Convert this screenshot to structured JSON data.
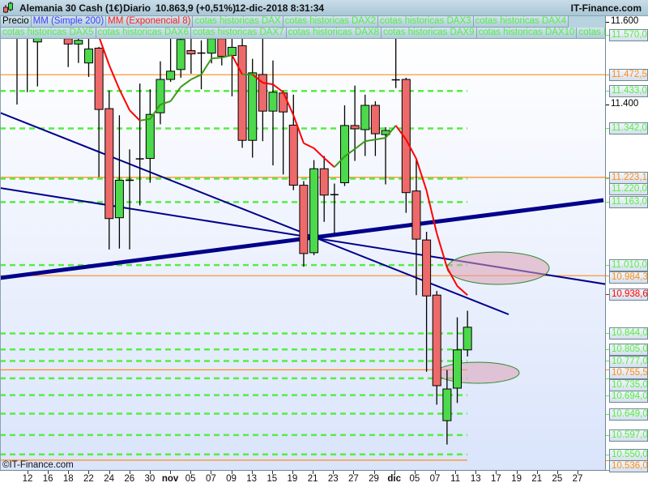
{
  "header": {
    "title": "Alemania 30 Cash (1€)",
    "period": "Diario",
    "price": "10.863,9 (+0,51%)",
    "datetime": "12-dic-2018 8:31:34",
    "brand": "IT-Finance.com",
    "icon": "candlestick-icon"
  },
  "legend": {
    "row1": [
      {
        "label": "Precio",
        "color": "#000000"
      },
      {
        "label": "MM (Simple 200)",
        "color": "#4040ff"
      },
      {
        "label": "MM (Exponencial 8)",
        "color": "#ff2020"
      },
      {
        "label": "cotas historicas DAX",
        "color": "#55ee44"
      },
      {
        "label": "cotas historicas DAX2",
        "color": "#55ee44"
      },
      {
        "label": "cotas historicas DAX3",
        "color": "#55ee44"
      },
      {
        "label": "cotas historicas DAX4",
        "color": "#55ee44"
      }
    ],
    "row2": [
      {
        "label": "cotas historicas DAX5",
        "color": "#55ee44"
      },
      {
        "label": "cotas historicas DAX6",
        "color": "#55ee44"
      },
      {
        "label": "cotas historicas DAX7",
        "color": "#55ee44"
      },
      {
        "label": "cotas historicas DAX8",
        "color": "#55ee44"
      },
      {
        "label": "cotas historicas DAX9",
        "color": "#55ee44"
      },
      {
        "label": "cotas historicas DAX10",
        "color": "#55ee44"
      },
      {
        "label": "cotas histori",
        "color": "#55ee44"
      }
    ]
  },
  "watermark": "©IT-Finance.com",
  "chart_data": {
    "type": "candlestick",
    "title": "Alemania 30 Cash (1€)",
    "ylim": [
      10520,
      11640
    ],
    "y_ticks": [
      {
        "value": 11600,
        "label": "11.600"
      },
      {
        "value": 11400,
        "label": "11.400"
      }
    ],
    "x_tick_labels": [
      "12",
      "16",
      "18",
      "22",
      "24",
      "26",
      "30",
      "nov",
      "05",
      "07",
      "09",
      "13",
      "15",
      "19",
      "21",
      "23",
      "27",
      "29",
      "dic",
      "05",
      "07",
      "11",
      "13",
      "17",
      "19",
      "21",
      "25",
      "27"
    ],
    "bold_ticks": [
      "nov",
      "dic"
    ],
    "colors": {
      "up": "#4cd94c",
      "down": "#ee6a6a",
      "ema_down": "#ff0000",
      "ema_up": "#3c9a14",
      "level_green": "#55ee44",
      "level_orange": "#ff8c1a",
      "trendline": "#00008b"
    },
    "dates": [
      "11-oct",
      "12-oct",
      "15-oct",
      "16-oct",
      "17-oct",
      "18-oct",
      "19-oct",
      "22-oct",
      "23-oct",
      "24-oct",
      "25-oct",
      "26-oct",
      "29-oct",
      "30-oct",
      "31-oct",
      "01-nov",
      "02-nov",
      "05-nov",
      "06-nov",
      "07-nov",
      "08-nov",
      "09-nov",
      "12-nov",
      "13-nov",
      "14-nov",
      "15-nov",
      "16-nov",
      "19-nov",
      "20-nov",
      "21-nov",
      "22-nov",
      "23-nov",
      "26-nov",
      "27-nov",
      "28-nov",
      "29-nov",
      "30-nov",
      "03-dic",
      "04-dic",
      "05-dic",
      "06-dic",
      "07-dic",
      "10-dic",
      "11-dic",
      "12-dic"
    ],
    "ohlc": [
      [
        11640,
        11680,
        11400,
        11620
      ],
      [
        11610,
        11660,
        11430,
        11630
      ],
      [
        11552,
        11620,
        11444,
        11590
      ],
      [
        11600,
        11660,
        11580,
        11640
      ],
      [
        11640,
        11670,
        11590,
        11610
      ],
      [
        11560,
        11600,
        11491,
        11547
      ],
      [
        11547,
        11600,
        11501,
        11556
      ],
      [
        11501,
        11600,
        11467,
        11535
      ],
      [
        11537,
        11540,
        11224,
        11388
      ],
      [
        11390,
        11434,
        11048,
        11123
      ],
      [
        11125,
        11374,
        11050,
        11216
      ],
      [
        11216,
        11291,
        11048,
        11214
      ],
      [
        11267,
        11451,
        11155,
        11268
      ],
      [
        11269,
        11437,
        11210,
        11376
      ],
      [
        11380,
        11505,
        11352,
        11461
      ],
      [
        11461,
        11620,
        11455,
        11481
      ],
      [
        11485,
        11620,
        11465,
        11558
      ],
      [
        11531,
        11620,
        11475,
        11523
      ],
      [
        11523,
        11556,
        11437,
        11525
      ],
      [
        11525,
        11620,
        11500,
        11560
      ],
      [
        11560,
        11620,
        11495,
        11517
      ],
      [
        11519,
        11620,
        11420,
        11539
      ],
      [
        11543,
        11620,
        11295,
        11313
      ],
      [
        11313,
        11511,
        11271,
        11477
      ],
      [
        11473,
        11590,
        11311,
        11384
      ],
      [
        11384,
        11507,
        11252,
        11430
      ],
      [
        11428,
        11434,
        11230,
        11382
      ],
      [
        11350,
        11424,
        11192,
        11204
      ],
      [
        11204,
        11214,
        11006,
        11038
      ],
      [
        11040,
        11265,
        11034,
        11244
      ],
      [
        11244,
        11275,
        11115,
        11180
      ],
      [
        11180,
        11208,
        11087,
        11181
      ],
      [
        11210,
        11398,
        11202,
        11349
      ],
      [
        11349,
        11446,
        11263,
        11341
      ],
      [
        11339,
        11424,
        11275,
        11398
      ],
      [
        11398,
        11408,
        11275,
        11329
      ],
      [
        11327,
        11345,
        11206,
        11337
      ],
      [
        11459,
        11600,
        11440,
        11460
      ],
      [
        11461,
        11465,
        11137,
        11186
      ],
      [
        11190,
        11269,
        10937,
        11073
      ],
      [
        11071,
        11091,
        10751,
        10935
      ],
      [
        10937,
        10947,
        10671,
        10717
      ],
      [
        10632,
        10755,
        10574,
        10709
      ],
      [
        10711,
        10883,
        10675,
        10804
      ],
      [
        10804,
        10899,
        10788,
        10859
      ]
    ],
    "ema8": {
      "name": "MM (Exponencial 8)",
      "start_index": 8,
      "values": [
        11565,
        11496,
        11437,
        11386,
        11361,
        11365,
        11400,
        11408,
        11443,
        11461,
        11473,
        11512,
        11514,
        11520,
        11473,
        11473,
        11453,
        11449,
        11430,
        11374,
        11306,
        11294,
        11270,
        11248,
        11274,
        11292,
        11311,
        11315,
        11319,
        11349,
        11315,
        11268,
        11191,
        11087,
        11004,
        10959,
        10937
      ]
    },
    "levels": [
      {
        "value": 11570.0,
        "label": "11.570,0",
        "color": "#55ee44",
        "style": "dashed"
      },
      {
        "value": 11472.5,
        "label": "11.472,5",
        "color": "#ff8c1a",
        "style": "solid"
      },
      {
        "value": 11433.0,
        "label": "11.433,0",
        "color": "#55ee44",
        "style": "dashed"
      },
      {
        "value": 11342.0,
        "label": "11.342,0",
        "color": "#55ee44",
        "style": "dashed"
      },
      {
        "value": 11223.1,
        "label": "11.223,1",
        "color": "#ff8c1a",
        "style": "solid"
      },
      {
        "value": 11220.0,
        "label": "11.220,0",
        "color": "#55ee44",
        "style": "dashed"
      },
      {
        "value": 11163.0,
        "label": "11.163,0",
        "color": "#55ee44",
        "style": "dashed"
      },
      {
        "value": 11010.0,
        "label": "11.010,0",
        "color": "#55ee44",
        "style": "dashed"
      },
      {
        "value": 10984.3,
        "label": "10.984,3",
        "color": "#ff8c1a",
        "style": "solid"
      },
      {
        "value": 10938.6,
        "label": "10.938,6",
        "color": "#ff0000",
        "style": "none"
      },
      {
        "value": 10844.0,
        "label": "10.844,0",
        "color": "#55ee44",
        "style": "dashed"
      },
      {
        "value": 10805.0,
        "label": "10.805,0",
        "color": "#55ee44",
        "style": "dashed"
      },
      {
        "value": 10777.0,
        "label": "10.777,0",
        "color": "#55ee44",
        "style": "dashed"
      },
      {
        "value": 10755.5,
        "label": "10.755,5",
        "color": "#ff8c1a",
        "style": "solid"
      },
      {
        "value": 10735.0,
        "label": "10.735,0",
        "color": "#55ee44",
        "style": "dashed"
      },
      {
        "value": 10694.0,
        "label": "10.694,0",
        "color": "#55ee44",
        "style": "dashed"
      },
      {
        "value": 10649.0,
        "label": "10.649,0",
        "color": "#55ee44",
        "style": "dashed"
      },
      {
        "value": 10597.0,
        "label": "10.597,0",
        "color": "#55ee44",
        "style": "dashed"
      },
      {
        "value": 10550.0,
        "label": "10.550,0",
        "color": "#55ee44",
        "style": "dashed"
      },
      {
        "value": 10536.0,
        "label": "10.536,0",
        "color": "#ff8c1a",
        "style": "solid"
      }
    ],
    "grid": false
  }
}
